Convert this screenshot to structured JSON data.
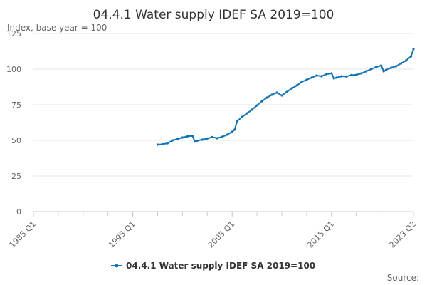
{
  "chart_data": {
    "type": "line",
    "title": "04.4.1 Water supply IDEF SA 2019=100",
    "ylabel": "Index, base year = 100",
    "xlabel": "",
    "ylim": [
      0,
      125
    ],
    "yticks": [
      "0",
      "25",
      "50",
      "75",
      "100",
      "125"
    ],
    "xlim": [
      1985.0,
      2023.25
    ],
    "xticks": [
      {
        "label": "1985 Q1",
        "value": 1985.0
      },
      {
        "label": "1995 Q1",
        "value": 1995.0
      },
      {
        "label": "2005 Q1",
        "value": 2005.0
      },
      {
        "label": "2015 Q1",
        "value": 2015.0
      },
      {
        "label": "2023 Q2",
        "value": 2023.25
      }
    ],
    "grid": true,
    "legend_position": "bottom",
    "series": [
      {
        "name": "04.4.1 Water supply IDEF SA 2019=100",
        "color": "#0f72b5",
        "x": [
          1997.5,
          1998.0,
          1998.5,
          1999.0,
          1999.5,
          2000.0,
          2000.5,
          2001.0,
          2001.25,
          2001.5,
          2002.0,
          2002.5,
          2003.0,
          2003.5,
          2004.0,
          2004.5,
          2005.0,
          2005.25,
          2005.5,
          2006.0,
          2006.5,
          2007.0,
          2007.5,
          2008.0,
          2008.5,
          2009.0,
          2009.5,
          2010.0,
          2010.5,
          2011.0,
          2011.5,
          2012.0,
          2012.5,
          2013.0,
          2013.5,
          2014.0,
          2014.5,
          2015.0,
          2015.25,
          2015.5,
          2016.0,
          2016.5,
          2017.0,
          2017.5,
          2018.0,
          2018.5,
          2019.0,
          2019.5,
          2020.0,
          2020.25,
          2020.5,
          2021.0,
          2021.5,
          2022.0,
          2022.5,
          2023.0,
          2023.25
        ],
        "values": [
          47,
          47.3,
          48,
          50,
          51,
          52,
          52.8,
          53.2,
          49.2,
          49.8,
          50.5,
          51.3,
          52.3,
          51.5,
          52.5,
          54.0,
          56.0,
          57.5,
          63.5,
          66.5,
          69.0,
          71.5,
          74.5,
          77.5,
          80.0,
          82.0,
          83.5,
          81.5,
          84.0,
          86.5,
          88.5,
          91.0,
          92.5,
          94.0,
          95.5,
          95.0,
          96.5,
          97.0,
          93.5,
          94.0,
          95.0,
          94.8,
          95.8,
          96.0,
          97.0,
          98.5,
          100.0,
          101.5,
          102.5,
          98.5,
          99.5,
          101.0,
          102.0,
          104.0,
          106.0,
          109.0,
          114.0
        ]
      }
    ]
  },
  "source_label": "Source:"
}
